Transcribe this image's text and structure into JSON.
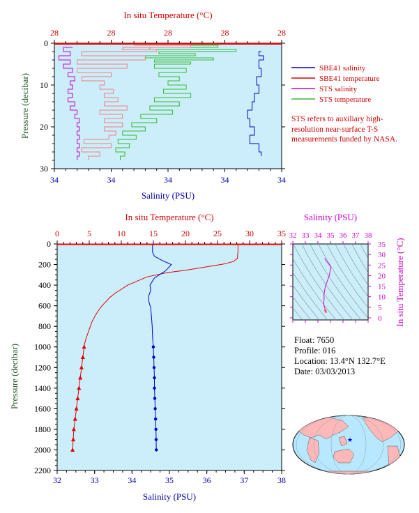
{
  "chart_data": [
    {
      "type": "line",
      "ylabel": "Pressure (decibar)",
      "xlabel_bottom": "Salinity (PSU)",
      "xlabel_top": "In situ Temperature (°C)",
      "x_bottom_ticks": [
        "34",
        "34",
        "34",
        "34",
        "34"
      ],
      "x_top_ticks": [
        "28",
        "28",
        "28",
        "28",
        "28"
      ],
      "y_ticks": [
        "0",
        "10",
        "20",
        "30"
      ],
      "ylim": [
        30,
        0
      ],
      "legend": {
        "placement": "right",
        "entries": [
          {
            "label": "SBE41 salinity",
            "color": "#0000cc"
          },
          {
            "label": "SBE41 temperature",
            "color": "#dd0000"
          },
          {
            "label": "STS salinity",
            "color": "#cc00cc"
          },
          {
            "label": "STS temperature",
            "color": "#33bb33"
          }
        ]
      },
      "note": "STS refers to auxiliary high-resolution near-surface T-S measurements funded by NASA.",
      "series": [
        {
          "key": "sts_temperature",
          "color": "#33bb33",
          "axis": "top",
          "xlim": [
            0,
            1
          ],
          "y": [
            0.5,
            1,
            1.5,
            2,
            2.5,
            3,
            3.5,
            4,
            4.5,
            5,
            6,
            7,
            8,
            9,
            10,
            11,
            12,
            13,
            14,
            15,
            16,
            17,
            18,
            19,
            20,
            21,
            22,
            23,
            24,
            25,
            26,
            27,
            28
          ],
          "x": [
            0.35,
            0.72,
            0.42,
            0.8,
            0.46,
            0.62,
            0.4,
            0.7,
            0.44,
            0.6,
            0.44,
            0.58,
            0.46,
            0.55,
            0.5,
            0.58,
            0.48,
            0.6,
            0.44,
            0.55,
            0.42,
            0.52,
            0.38,
            0.45,
            0.34,
            0.4,
            0.3,
            0.36,
            0.28,
            0.33,
            0.27,
            0.31,
            0.29
          ]
        },
        {
          "key": "sbe41_temperature_upper",
          "color": "#f08080",
          "axis": "top",
          "xlim": [
            0,
            1
          ],
          "y": [
            0.5,
            1,
            1.5,
            2,
            3,
            4,
            5,
            6,
            7,
            8,
            9,
            10,
            11,
            12,
            13,
            14,
            15,
            16,
            17,
            18,
            19,
            20,
            21,
            22,
            23,
            24,
            25,
            26,
            27,
            28
          ],
          "x": [
            0.35,
            0.6,
            0.3,
            0.45,
            0.12,
            0.4,
            0.1,
            0.32,
            0.1,
            0.25,
            0.12,
            0.22,
            0.2,
            0.26,
            0.22,
            0.28,
            0.22,
            0.32,
            0.2,
            0.3,
            0.22,
            0.3,
            0.22,
            0.27,
            0.24,
            0.13,
            0.25,
            0.12,
            0.2,
            0.15
          ]
        },
        {
          "key": "sts_salinity",
          "color": "#cc00cc",
          "axis": "bottom",
          "xlim": [
            0,
            1
          ],
          "y": [
            1,
            2,
            3,
            4,
            5,
            6,
            7,
            8,
            9,
            10,
            11,
            12,
            13,
            14,
            15,
            16,
            17,
            18,
            19,
            20,
            21,
            22,
            23,
            24,
            25,
            26,
            27,
            28
          ],
          "x": [
            0.08,
            0.04,
            0.07,
            0.02,
            0.07,
            0.04,
            0.08,
            0.06,
            0.09,
            0.07,
            0.08,
            0.06,
            0.08,
            0.06,
            0.09,
            0.07,
            0.1,
            0.09,
            0.11,
            0.1,
            0.11,
            0.1,
            0.11,
            0.1,
            0.11,
            0.1,
            0.11,
            0.1
          ]
        },
        {
          "key": "sbe41_salinity",
          "color": "#0000cc",
          "axis": "bottom",
          "xlim": [
            0,
            1
          ],
          "y": [
            2,
            3,
            4,
            6,
            8,
            10,
            12,
            14,
            16,
            18,
            20,
            22,
            24,
            26,
            27
          ],
          "x": [
            0.91,
            0.9,
            0.92,
            0.9,
            0.91,
            0.89,
            0.9,
            0.88,
            0.87,
            0.85,
            0.86,
            0.88,
            0.86,
            0.9,
            0.91
          ]
        }
      ]
    },
    {
      "type": "line",
      "ylabel": "Pressure (decibar)",
      "xlabel_bottom": "Salinity (PSU)",
      "xlabel_top": "In situ Temperature (°C)",
      "x_bottom_ticks": [
        "32",
        "33",
        "34",
        "35",
        "36",
        "37",
        "38"
      ],
      "xlim_bottom": [
        32,
        38
      ],
      "x_top_ticks": [
        "0",
        "5",
        "10",
        "15",
        "20",
        "25",
        "30",
        "35"
      ],
      "xlim_top": [
        0,
        35
      ],
      "y_ticks": [
        "0",
        "200",
        "400",
        "600",
        "800",
        "1000",
        "1200",
        "1400",
        "1600",
        "1800",
        "2000",
        "2200"
      ],
      "ylim": [
        2200,
        0
      ],
      "series": [
        {
          "key": "temperature",
          "color": "#dd0000",
          "axis": "top",
          "marker": "triangle",
          "x": [
            28.2,
            28.2,
            28.1,
            27.5,
            26,
            24,
            22,
            20,
            17,
            14,
            11,
            9.5,
            9,
            8.6,
            8.2,
            7.6,
            7,
            6.4,
            5.9,
            5.4,
            5.0,
            4.6,
            4.3,
            4.2,
            4.0,
            3.8,
            3.6,
            3.4,
            3.2,
            3.0,
            2.8,
            2.6,
            2.4
          ],
          "y": [
            0,
            70,
            140,
            170,
            195,
            215,
            235,
            255,
            280,
            320,
            400,
            460,
            480,
            500,
            520,
            560,
            600,
            650,
            700,
            760,
            830,
            900,
            960,
            1000,
            1100,
            1200,
            1300,
            1400,
            1500,
            1600,
            1700,
            1800,
            2000
          ],
          "marker_from": 1000
        },
        {
          "key": "salinity",
          "color": "#0000cc",
          "axis": "bottom",
          "marker": "circle",
          "x": [
            34.55,
            34.55,
            34.6,
            34.8,
            35.05,
            34.9,
            34.6,
            34.48,
            34.5,
            34.45,
            34.45,
            34.5,
            34.52,
            34.54,
            34.55,
            34.57,
            34.58,
            34.59,
            34.6,
            34.6,
            34.61,
            34.62,
            34.63,
            34.64,
            34.65
          ],
          "y": [
            0,
            80,
            120,
            160,
            200,
            260,
            330,
            400,
            450,
            500,
            560,
            620,
            700,
            800,
            900,
            1000,
            1100,
            1200,
            1300,
            1400,
            1500,
            1600,
            1700,
            1800,
            2000
          ],
          "marker_from": 1000
        }
      ]
    },
    {
      "type": "scatter",
      "xlabel": "Salinity (PSU)",
      "ylabel": "In situ Temperature (°C)",
      "x_ticks": [
        "32",
        "33",
        "34",
        "35",
        "36",
        "37",
        "38"
      ],
      "xlim": [
        32,
        38
      ],
      "y_ticks": [
        "0",
        "5",
        "10",
        "15",
        "20",
        "25",
        "30",
        "35"
      ],
      "ylim": [
        -1,
        35
      ],
      "series": [
        {
          "key": "ts",
          "color": "#cc00cc",
          "x": [
            34.55,
            34.6,
            34.8,
            35.05,
            34.9,
            34.6,
            34.48,
            34.5,
            34.45,
            34.5,
            34.55
          ],
          "y": [
            28.2,
            27.5,
            26,
            24,
            20,
            15,
            11,
            9,
            7,
            5.5,
            4.5
          ]
        },
        {
          "key": "ts_deep",
          "color": "#ff6060",
          "x": [
            34.55,
            34.58,
            34.6,
            34.62,
            34.64,
            34.65
          ],
          "y": [
            4.3,
            3.8,
            3.4,
            3.0,
            2.6,
            2.4
          ]
        }
      ]
    }
  ],
  "float_info": {
    "float": "Float:  7650",
    "profile": "Profile:  016",
    "location": "Location:  13.4°N  132.7°E",
    "date": "Date:  03/03/2013"
  },
  "colors": {
    "plot_bg": "#cceefa",
    "land": "#ffb8b8",
    "ocean": "#b8e8ff",
    "float_marker": "#0000ff"
  }
}
